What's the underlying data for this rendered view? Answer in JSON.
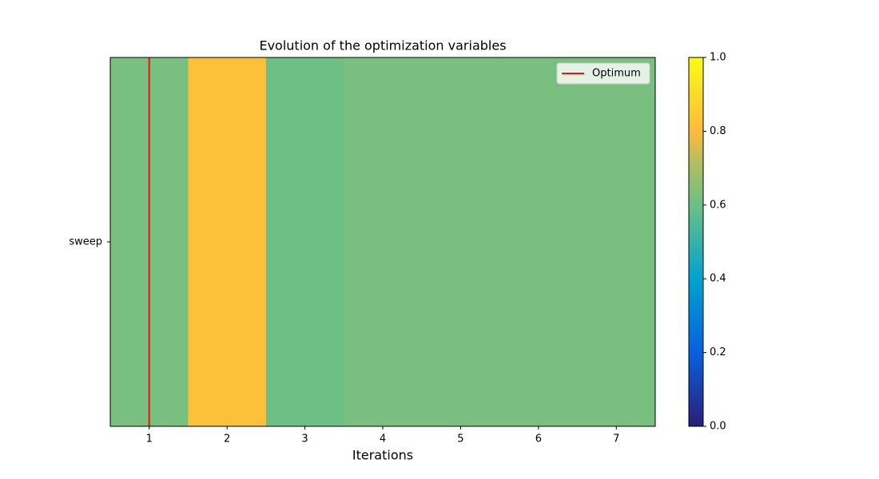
{
  "chart_data": {
    "type": "heatmap",
    "title": "Evolution of the optimization variables",
    "x_label": "Iterations",
    "x": [
      1,
      2,
      3,
      4,
      5,
      6,
      7
    ],
    "y_categories": [
      "sweep"
    ],
    "values": [
      [
        0.62,
        0.82,
        0.6,
        0.62,
        0.62,
        0.62,
        0.62
      ]
    ],
    "xlim": [
      0.5,
      7.5
    ],
    "xticks": [
      1,
      2,
      3,
      4,
      5,
      6,
      7
    ],
    "clim": [
      0,
      1
    ],
    "cticks": [
      {
        "value": 0,
        "label": "0.0"
      },
      {
        "value": 0.2,
        "label": "0.2"
      },
      {
        "value": 0.4,
        "label": "0.4"
      },
      {
        "value": 0.6,
        "label": "0.6"
      },
      {
        "value": 0.8,
        "label": "0.8"
      },
      {
        "value": 1,
        "label": "1.0"
      }
    ],
    "colorscale": [
      {
        "value": 0,
        "color": "#2b1e76"
      },
      {
        "value": 0.2,
        "color": "#0760e0"
      },
      {
        "value": 0.4,
        "color": "#00a3cf"
      },
      {
        "value": 0.6,
        "color": "#6dbf85"
      },
      {
        "value": 0.7,
        "color": "#a8bf65"
      },
      {
        "value": 0.8,
        "color": "#fcbb3c"
      },
      {
        "value": 1,
        "color": "#f9fb15"
      }
    ],
    "optimum": {
      "name": "Optimum",
      "x": 1,
      "color": "#e8170c"
    },
    "legend": "upper right"
  }
}
